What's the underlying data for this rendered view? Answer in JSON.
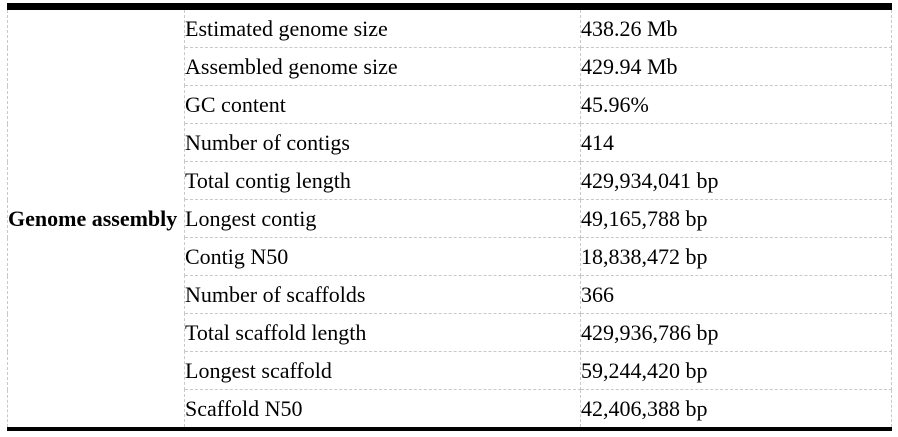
{
  "table": {
    "group_label": "Genome assembly",
    "rows": [
      {
        "label": "Estimated genome size",
        "value": "438.26 Mb"
      },
      {
        "label": "Assembled genome size",
        "value": "429.94 Mb"
      },
      {
        "label": "GC content",
        "value": "45.96%"
      },
      {
        "label": "Number of contigs",
        "value": "414"
      },
      {
        "label": "Total contig length",
        "value": "429,934,041 bp"
      },
      {
        "label": "Longest contig",
        "value": "49,165,788 bp"
      },
      {
        "label": "Contig N50",
        "value": "18,838,472 bp"
      },
      {
        "label": "Number of scaffolds",
        "value": "366"
      },
      {
        "label": "Total scaffold length",
        "value": "429,936,786 bp"
      },
      {
        "label": "Longest scaffold",
        "value": "59,244,420 bp"
      },
      {
        "label": "Scaffold N50",
        "value": "42,406,388 bp"
      }
    ],
    "colors": {
      "heavy_border": "#000000",
      "gridline": "#c9c9c9",
      "text": "#000000",
      "background": "#ffffff"
    }
  }
}
